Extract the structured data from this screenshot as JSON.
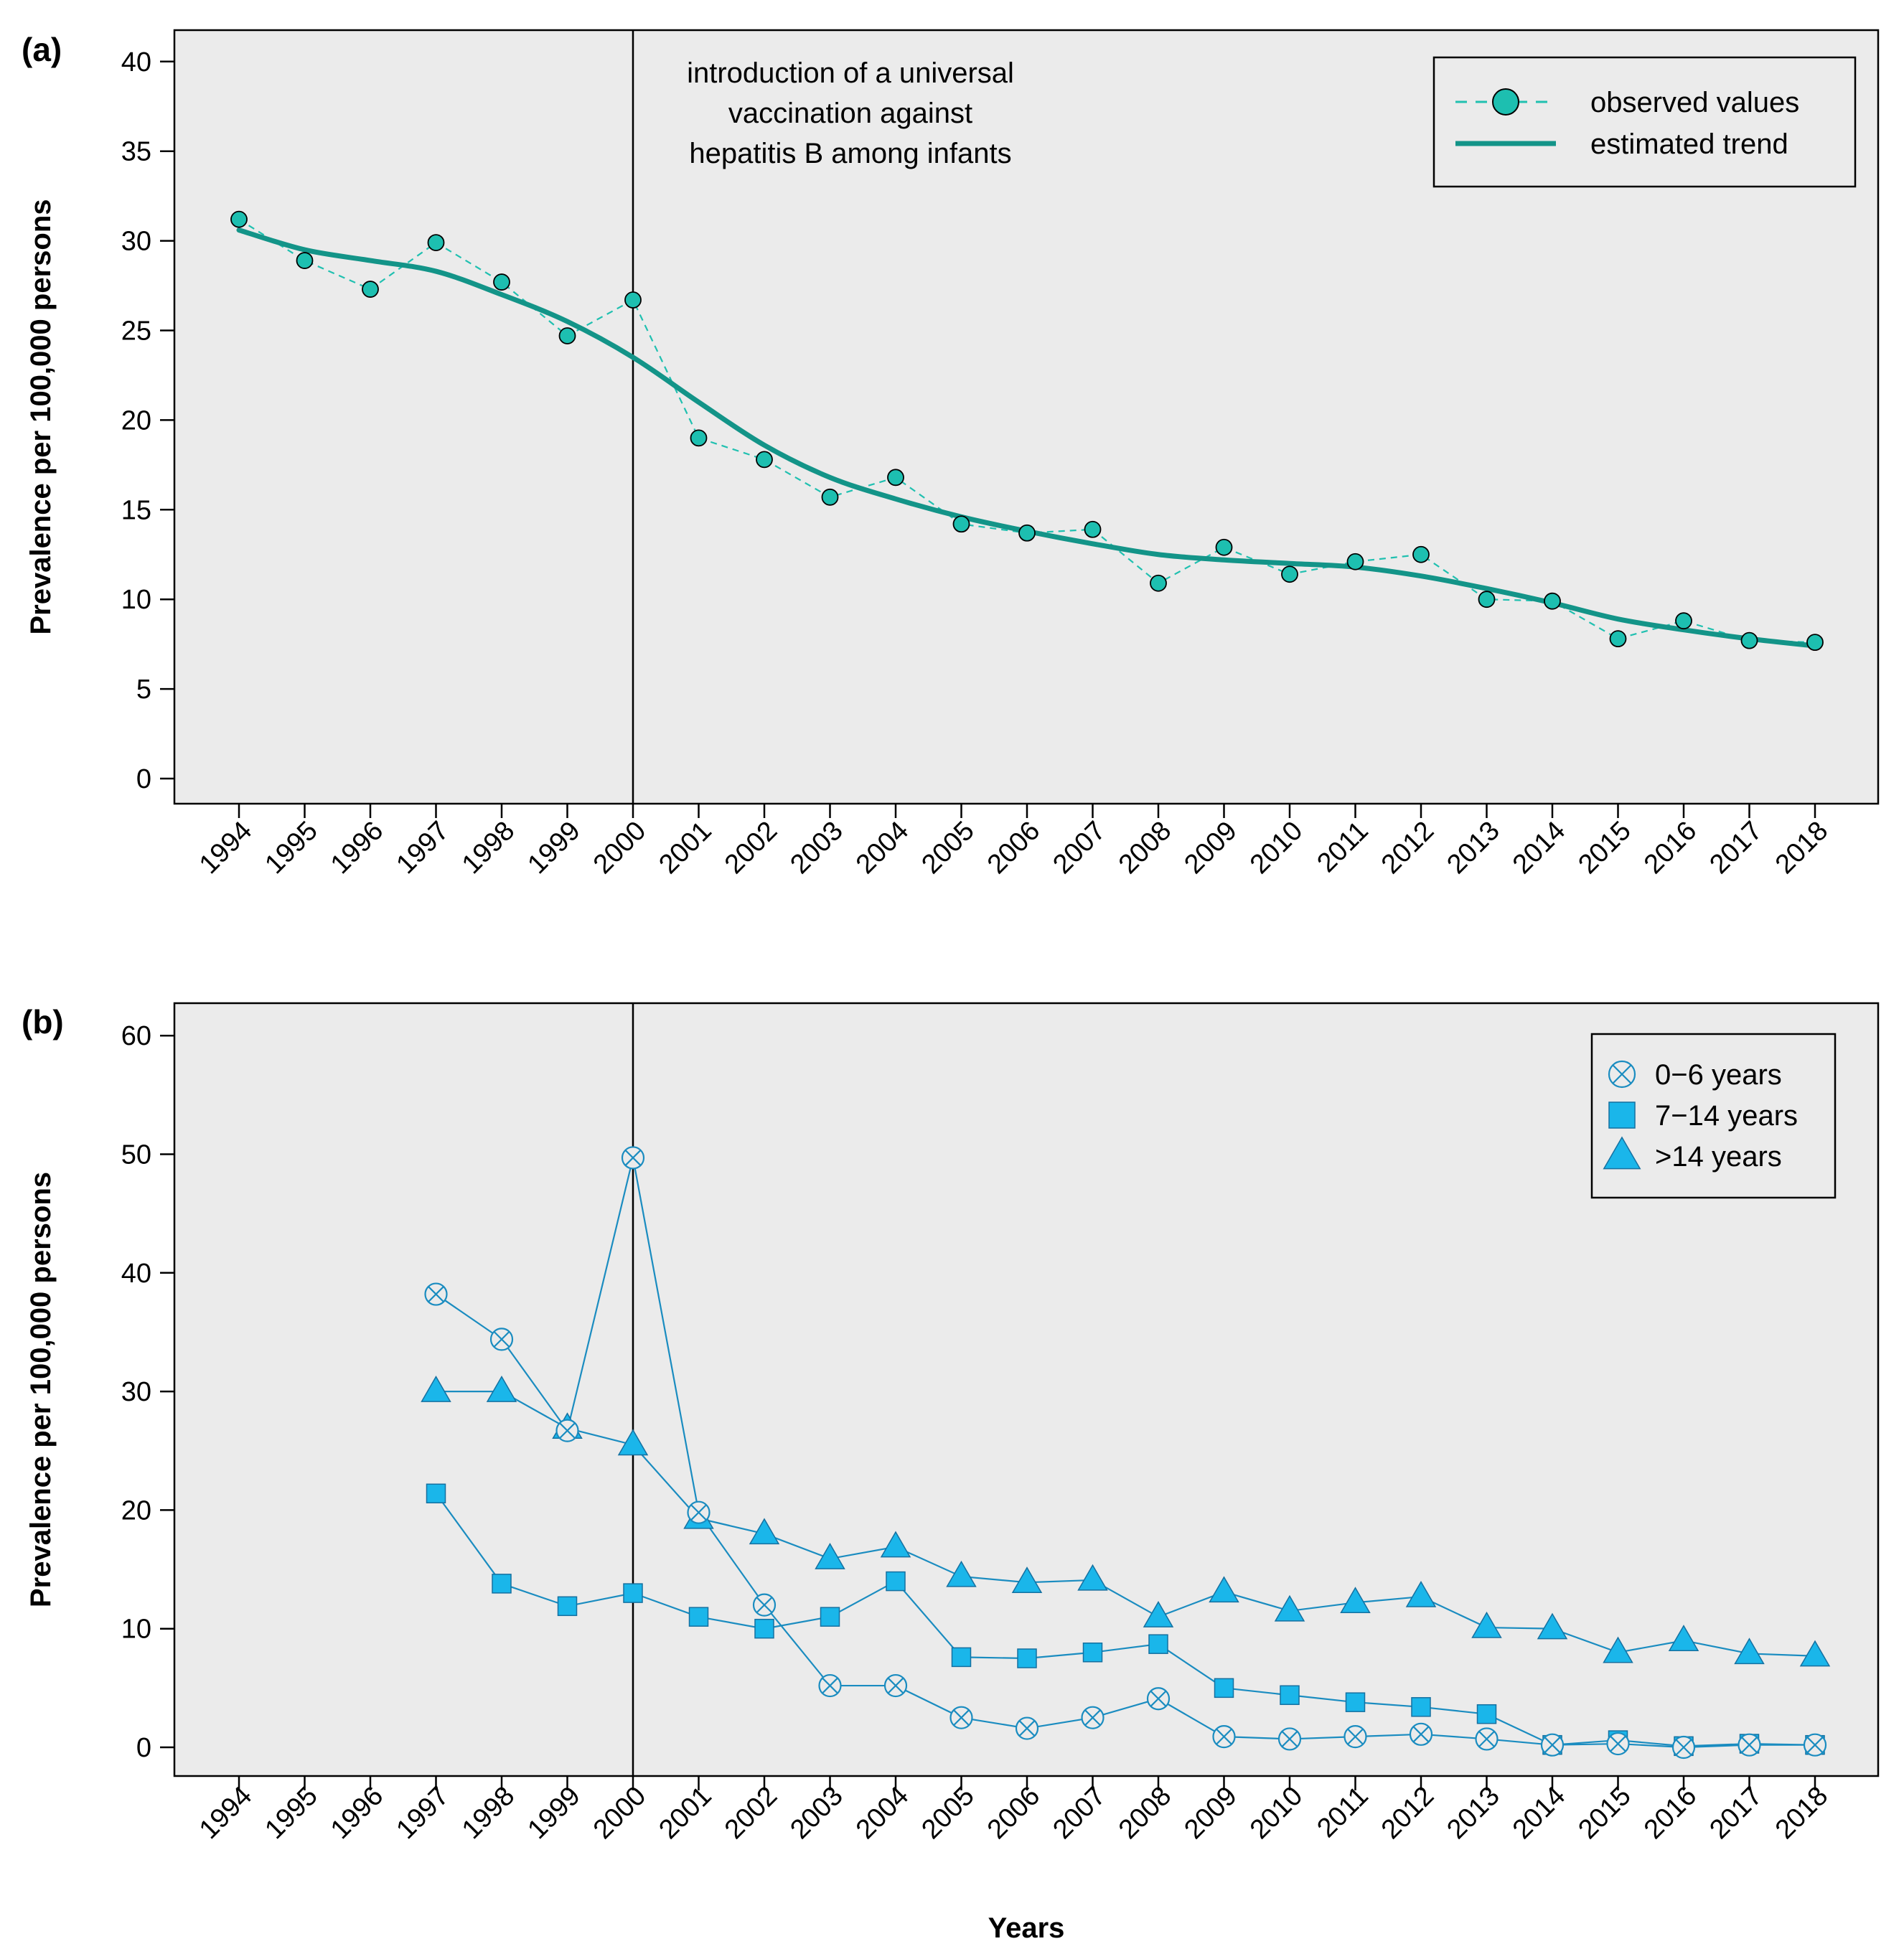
{
  "chart_data": [
    {
      "type": "line",
      "panel_label": "(a)",
      "ylabel": "Prevalence per 100,000 persons",
      "xlabel": "",
      "ylim": [
        0,
        40
      ],
      "yticks": [
        0,
        5,
        10,
        15,
        20,
        25,
        30,
        35,
        40
      ],
      "x": [
        1994,
        1995,
        1996,
        1997,
        1998,
        1999,
        2000,
        2001,
        2002,
        2003,
        2004,
        2005,
        2006,
        2007,
        2008,
        2009,
        2010,
        2011,
        2012,
        2013,
        2014,
        2015,
        2016,
        2017,
        2018
      ],
      "grid": false,
      "legend_position": "top-right",
      "vline": {
        "x": 2000,
        "annotation": [
          "introduction of a universal",
          "vaccination against",
          "hepatitis B among infants"
        ]
      },
      "series": [
        {
          "name": "observed values",
          "style": "dashed-with-circles",
          "color": "#20c0b0",
          "values": [
            31.2,
            28.9,
            27.3,
            29.9,
            27.7,
            24.7,
            26.7,
            19.0,
            17.8,
            15.7,
            16.8,
            14.2,
            13.7,
            13.9,
            10.9,
            12.9,
            11.4,
            12.1,
            12.5,
            10.0,
            9.9,
            7.8,
            8.8,
            7.7,
            7.6
          ]
        },
        {
          "name": "estimated trend",
          "style": "solid",
          "color": "#139488",
          "values": [
            30.6,
            29.5,
            28.9,
            28.3,
            27.0,
            25.5,
            23.5,
            21.0,
            18.6,
            16.8,
            15.6,
            14.6,
            13.8,
            13.1,
            12.5,
            12.2,
            12.0,
            11.8,
            11.3,
            10.6,
            9.8,
            8.9,
            8.3,
            7.8,
            7.4
          ]
        }
      ]
    },
    {
      "type": "line",
      "panel_label": "(b)",
      "ylabel": "Prevalence per 100,000 persons",
      "xlabel": "Years",
      "ylim": [
        0,
        60
      ],
      "yticks": [
        0,
        10,
        20,
        30,
        40,
        50,
        60
      ],
      "x": [
        1994,
        1995,
        1996,
        1997,
        1998,
        1999,
        2000,
        2001,
        2002,
        2003,
        2004,
        2005,
        2006,
        2007,
        2008,
        2009,
        2010,
        2011,
        2012,
        2013,
        2014,
        2015,
        2016,
        2017,
        2018
      ],
      "grid": false,
      "legend_position": "top-right",
      "vline": {
        "x": 2000
      },
      "series": [
        {
          "name": "0−6 years",
          "marker": "circle-x",
          "color": "#1a8cc0",
          "values": [
            null,
            null,
            null,
            38.2,
            34.4,
            26.7,
            49.7,
            19.8,
            12.0,
            5.2,
            5.2,
            2.5,
            1.6,
            2.5,
            4.1,
            0.9,
            0.7,
            0.9,
            1.1,
            0.7,
            0.2,
            0.3,
            0.0,
            0.2,
            0.2
          ]
        },
        {
          "name": "7−14 years",
          "marker": "square",
          "color": "#1a8cc0",
          "values": [
            null,
            null,
            null,
            21.4,
            13.8,
            11.9,
            13.0,
            11.0,
            10.0,
            11.0,
            14.0,
            7.6,
            7.5,
            8.0,
            8.7,
            5.0,
            4.4,
            3.8,
            3.4,
            2.8,
            0.2,
            0.6,
            0.1,
            0.3,
            0.2
          ]
        },
        {
          "name": ">14 years",
          "marker": "triangle",
          "color": "#1a8cc0",
          "values": [
            null,
            null,
            null,
            30.0,
            30.0,
            26.9,
            25.5,
            19.3,
            18.0,
            15.9,
            16.9,
            14.4,
            13.9,
            14.1,
            11.0,
            13.1,
            11.5,
            12.2,
            12.7,
            10.1,
            10.0,
            8.0,
            9.0,
            7.9,
            7.7
          ]
        }
      ]
    }
  ],
  "colors": {
    "panel_bg": "#ebebeb",
    "teal_dark": "#139488",
    "teal_fill": "#1dbfb0",
    "blue_fill": "#1ab6ea",
    "blue_line": "#1a8cc0"
  }
}
